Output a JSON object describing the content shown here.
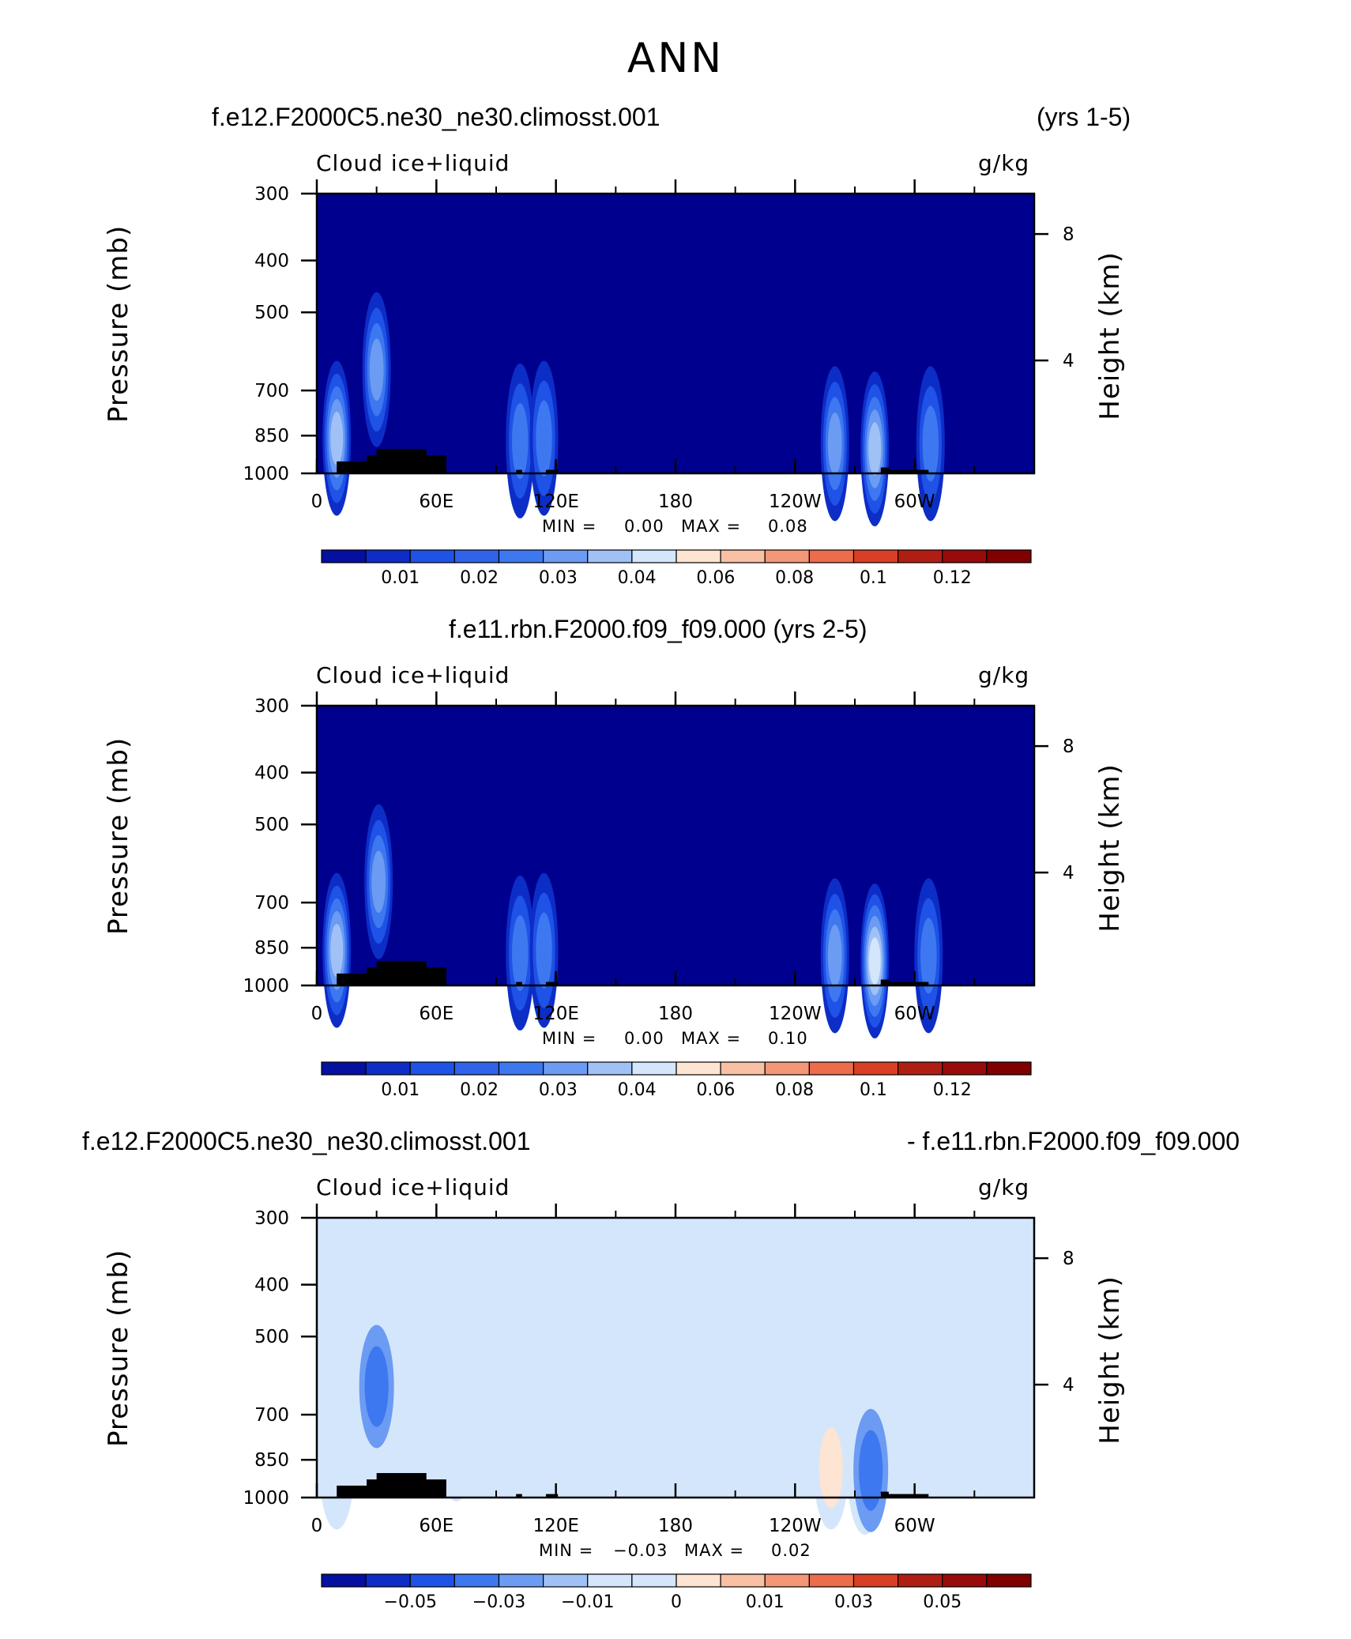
{
  "title": "ANN",
  "labels": {
    "var": "Cloud ice+liquid",
    "units": "g/kg",
    "ylabel_left": "Pressure (mb)",
    "ylabel_right": "Height (km)",
    "min_label": "MIN =",
    "max_label": "MAX ="
  },
  "panels": [
    {
      "case_left": "f.e12.F2000C5.ne30_ne30.climosst.001",
      "case_right": "(yrs 1-5)",
      "case_center": "",
      "min": "0.00",
      "max": "0.08",
      "colorbar_labels": [
        "0.01",
        "0.02",
        "0.03",
        "0.04",
        "0.06",
        "0.08",
        "0.1",
        "0.12"
      ]
    },
    {
      "case_left": "",
      "case_right": "",
      "case_center": "f.e11.rbn.F2000.f09_f09.000 (yrs 2-5)",
      "min": "0.00",
      "max": "0.10",
      "colorbar_labels": [
        "0.01",
        "0.02",
        "0.03",
        "0.04",
        "0.06",
        "0.08",
        "0.1",
        "0.12"
      ]
    },
    {
      "case_left": "f.e12.F2000C5.ne30_ne30.climosst.001",
      "case_right": "- f.e11.rbn.F2000.f09_f09.000",
      "case_center": "",
      "min": "−0.03",
      "max": "0.02",
      "colorbar_labels": [
        "−0.05",
        "−0.03",
        "−0.01",
        "0",
        "0.01",
        "0.03",
        "0.05"
      ]
    }
  ],
  "chart_data": [
    {
      "type": "heatmap",
      "title": "Cloud ice+liquid",
      "xlabel": "",
      "ylabel": "Pressure (mb)",
      "ylabel_right": "Height (km)",
      "x_ticks": [
        "0",
        "60E",
        "120E",
        "180",
        "120W",
        "60W"
      ],
      "x_range": [
        0,
        360
      ],
      "y_ticks": [
        "300",
        "400",
        "500",
        "700",
        "850",
        "1000"
      ],
      "y_range_mb": [
        300,
        1000
      ],
      "y_right_ticks": [
        "8",
        "4"
      ],
      "levels": [
        0.01,
        0.02,
        0.03,
        0.04,
        0.06,
        0.08,
        0.1,
        0.12
      ],
      "min": 0.0,
      "max": 0.08,
      "background_value": 0.0,
      "features": [
        {
          "lon": 10,
          "p": 860,
          "peak": 0.07
        },
        {
          "lon": 30,
          "p": 640,
          "peak": 0.045
        },
        {
          "lon": 102,
          "p": 870,
          "peak": 0.03
        },
        {
          "lon": 114,
          "p": 860,
          "peak": 0.035
        },
        {
          "lon": 260,
          "p": 880,
          "peak": 0.05
        },
        {
          "lon": 280,
          "p": 900,
          "peak": 0.075
        },
        {
          "lon": 308,
          "p": 880,
          "peak": 0.03
        }
      ]
    },
    {
      "type": "heatmap",
      "title": "Cloud ice+liquid",
      "xlabel": "",
      "ylabel": "Pressure (mb)",
      "ylabel_right": "Height (km)",
      "x_ticks": [
        "0",
        "60E",
        "120E",
        "180",
        "120W",
        "60W"
      ],
      "x_range": [
        0,
        360
      ],
      "y_ticks": [
        "300",
        "400",
        "500",
        "700",
        "850",
        "1000"
      ],
      "y_range_mb": [
        300,
        1000
      ],
      "y_right_ticks": [
        "8",
        "4"
      ],
      "levels": [
        0.01,
        0.02,
        0.03,
        0.04,
        0.06,
        0.08,
        0.1,
        0.12
      ],
      "min": 0.0,
      "max": 0.1,
      "background_value": 0.0,
      "features": [
        {
          "lon": 10,
          "p": 860,
          "peak": 0.07
        },
        {
          "lon": 31,
          "p": 640,
          "peak": 0.045
        },
        {
          "lon": 102,
          "p": 870,
          "peak": 0.03
        },
        {
          "lon": 114,
          "p": 860,
          "peak": 0.035
        },
        {
          "lon": 260,
          "p": 880,
          "peak": 0.05
        },
        {
          "lon": 280,
          "p": 900,
          "peak": 0.08
        },
        {
          "lon": 307,
          "p": 880,
          "peak": 0.035
        }
      ]
    },
    {
      "type": "heatmap",
      "title": "Cloud ice+liquid",
      "xlabel": "",
      "ylabel": "Pressure (mb)",
      "ylabel_right": "Height (km)",
      "x_ticks": [
        "0",
        "60E",
        "120E",
        "180",
        "120W",
        "60W"
      ],
      "x_range": [
        0,
        360
      ],
      "y_ticks": [
        "300",
        "400",
        "500",
        "700",
        "850",
        "1000"
      ],
      "y_range_mb": [
        300,
        1000
      ],
      "y_right_ticks": [
        "8",
        "4"
      ],
      "levels": [
        -0.05,
        -0.03,
        -0.01,
        0,
        0.01,
        0.03,
        0.05
      ],
      "min": -0.03,
      "max": 0.02,
      "background_value": 0.0,
      "features": [
        {
          "lon": 30,
          "p": 620,
          "peak": -0.015
        },
        {
          "lon": 10,
          "p": 880,
          "peak": 0.005
        },
        {
          "lon": 70,
          "p": 780,
          "peak": 0.004
        },
        {
          "lon": 155,
          "p": 760,
          "peak": 0.004
        },
        {
          "lon": 258,
          "p": 880,
          "peak": 0.01
        },
        {
          "lon": 275,
          "p": 900,
          "peak": 0.02
        },
        {
          "lon": 278,
          "p": 890,
          "peak": -0.03
        }
      ]
    }
  ],
  "colors": {
    "fill_low": "#00008f",
    "neutral_diff": "#d4e6fb",
    "land": "#000000",
    "cb_main": [
      "#050fa0",
      "#0d2dc7",
      "#1f52e6",
      "#3d78f0",
      "#6c9bf3",
      "#9fc1f6",
      "#d4e6fb",
      "#fde4d3",
      "#f9c0a3",
      "#f39777",
      "#ec6c4c",
      "#d93f24",
      "#b01e13",
      "#800000"
    ],
    "cb_diff": [
      "#050fa0",
      "#0d2dc7",
      "#1f52e6",
      "#3d78f0",
      "#6c9bf3",
      "#9fc1f6",
      "#d4e6fb",
      "#fde4d3",
      "#f9c0a3",
      "#f39777",
      "#ec6c4c",
      "#d93f24",
      "#b01e13",
      "#800000"
    ]
  }
}
